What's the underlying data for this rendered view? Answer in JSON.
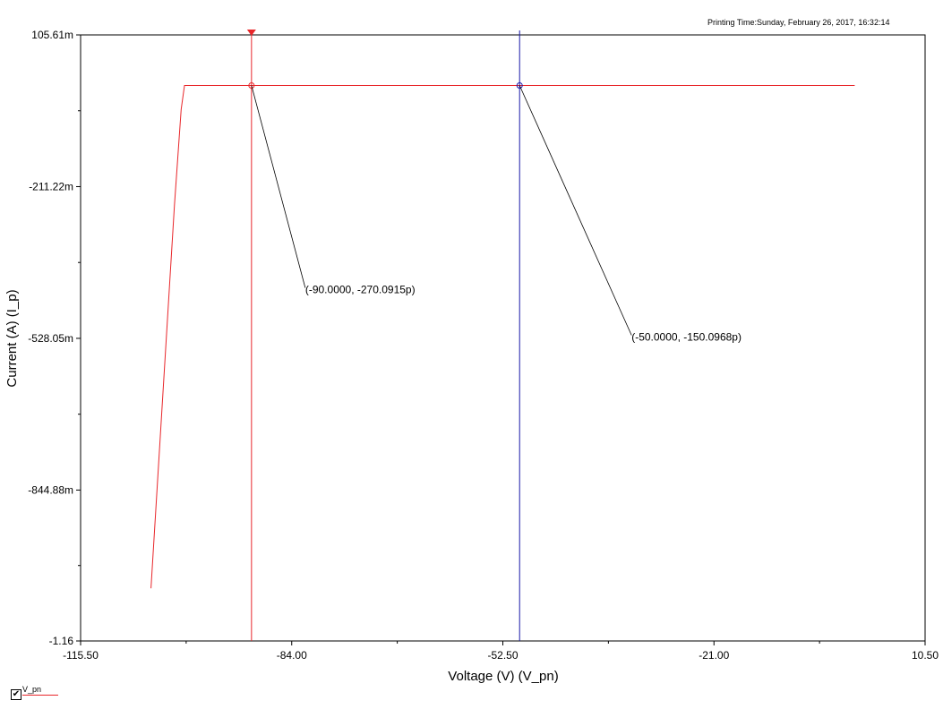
{
  "header": {
    "printing_time": "Printing Time:Sunday, February 26, 2017, 16:32:14"
  },
  "colors": {
    "series": "#e8262a",
    "cursor_a": "#e8262a",
    "cursor_b": "#1a1aa8",
    "axis": "#000000"
  },
  "chart_data": {
    "type": "line",
    "title": "",
    "xlabel": "Voltage (V) (V_pn)",
    "ylabel": "Current (A) (I_p)",
    "xlim": [
      -115.5,
      10.5
    ],
    "ylim": [
      -1.16,
      0.10561
    ],
    "x_ticks": [
      -115.5,
      -84.0,
      -52.5,
      -21.0,
      10.5
    ],
    "x_tick_labels": [
      "-115.50",
      "-84.00",
      "-52.50",
      "-21.00",
      "10.50"
    ],
    "y_ticks": [
      0.10561,
      -0.21122,
      -0.52805,
      -0.84488,
      -1.16
    ],
    "y_tick_labels": [
      "105.61m",
      "-211.22m",
      "-528.05m",
      "-844.88m",
      "-1.16"
    ],
    "grid": false,
    "series": [
      {
        "name": "V_pn",
        "x": [
          -105.0,
          -101.5,
          -100.5,
          -100.0,
          -99.0,
          0.0
        ],
        "y": [
          -1.05,
          -0.25,
          -0.05,
          0.0,
          0.0,
          0.0
        ]
      }
    ],
    "cursors": [
      {
        "x": -90.0,
        "y": 0.0,
        "label": "(-90.0000, -270.0915p)"
      },
      {
        "x": -50.0,
        "y": 0.0,
        "label": "(-50.0000, -150.0968p)"
      }
    ]
  },
  "legend": {
    "label": "V_pn",
    "checked": "✔"
  }
}
